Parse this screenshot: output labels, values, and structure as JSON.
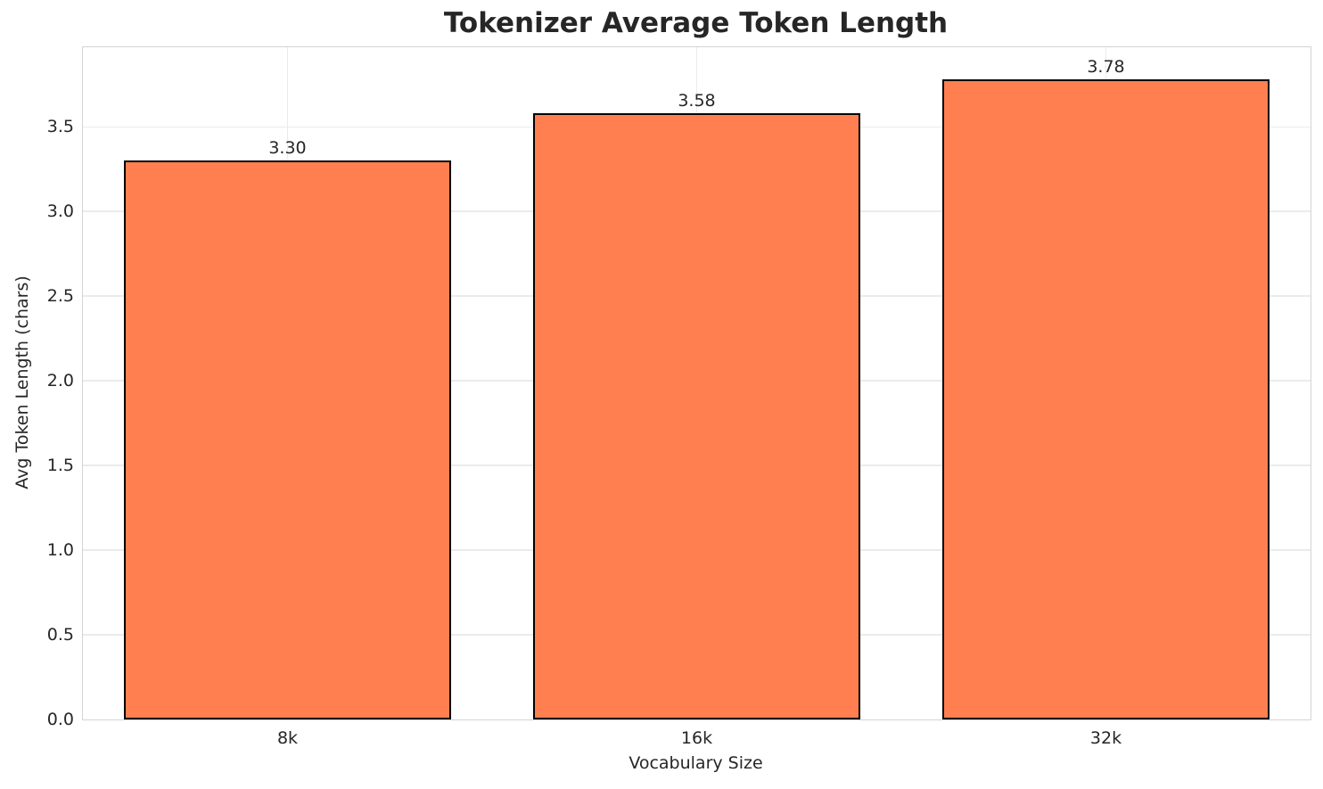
{
  "figure": {
    "background": "#ffffff"
  },
  "chart_data": {
    "type": "bar",
    "title": "Tokenizer Average Token Length",
    "xlabel": "Vocabulary Size",
    "ylabel": "Avg Token Length (chars)",
    "categories": [
      "8k",
      "16k",
      "32k"
    ],
    "values": [
      3.3,
      3.58,
      3.78
    ],
    "bar_labels": [
      "3.30",
      "3.58",
      "3.78"
    ],
    "ylim": [
      0,
      3.97
    ],
    "yticks": [
      0.0,
      0.5,
      1.0,
      1.5,
      2.0,
      2.5,
      3.0,
      3.5
    ],
    "ytick_labels": [
      "0.0",
      "0.5",
      "1.0",
      "1.5",
      "2.0",
      "2.5",
      "3.0",
      "3.5"
    ],
    "grid": true,
    "grid_axes": "both",
    "legend": "none",
    "bar_color": "#FF7F50",
    "bar_edge_color": "#000000",
    "bar_width_frac": 0.8,
    "grid_color": "#ebebeb",
    "spine_color": "#d4d4d4",
    "text_color": "#262626"
  }
}
